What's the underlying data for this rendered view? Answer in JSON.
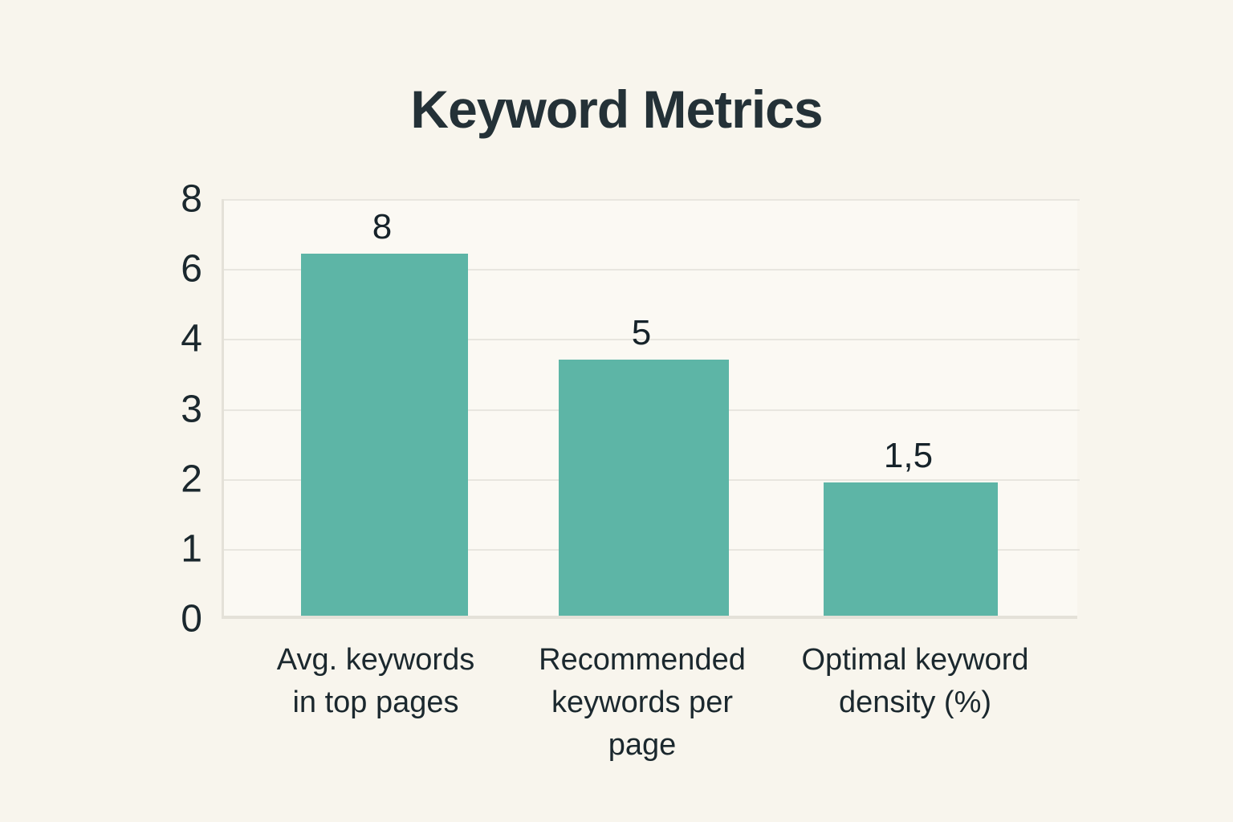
{
  "page": {
    "title": "Keyword Metrics"
  },
  "colors": {
    "background": "#f8f5ed",
    "plot_background": "#fbf9f3",
    "bar": "#5db5a6",
    "gridline": "#e8e6df",
    "axis_border": "#e4e1d8",
    "title_text": "#243137",
    "tick_text": "#1b282e",
    "category_text": "#1b282e",
    "value_text": "#16232a"
  },
  "chart_data": {
    "type": "bar",
    "title": "Keyword Metrics",
    "categories": [
      "Avg. keywords in top pages",
      "Recommended keywords per page",
      "Optimal keyword density (%)"
    ],
    "category_label_lines": [
      [
        "Avg. keywords",
        "in top pages"
      ],
      [
        "Recommended",
        "keywords per",
        "page"
      ],
      [
        "Optimal keyword",
        "density (%)"
      ]
    ],
    "values": [
      8,
      5,
      1.5
    ],
    "bar_value_labels": [
      "8",
      "5",
      "1,5"
    ],
    "y_axis_tick_labels": [
      "8",
      "6",
      "4",
      "3",
      "2",
      "1",
      "0"
    ],
    "ylim": [
      0,
      8
    ],
    "grid": true,
    "legend": false,
    "bar_color": "#5db5a6",
    "decimal_separator": ",",
    "drawn_bar_height_fractions": [
      0.862,
      0.61,
      0.317
    ]
  }
}
